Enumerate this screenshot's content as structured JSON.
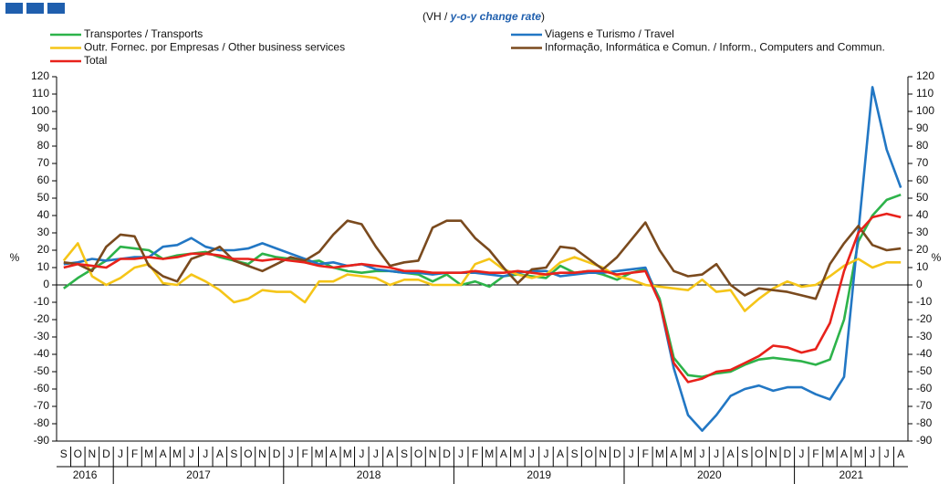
{
  "chart_data": {
    "type": "line",
    "subtitle": [
      "(VH / ",
      "y-o-y change rate",
      ")"
    ],
    "y_axis_label": "%",
    "y2_axis_label": "%",
    "categories": [
      "S",
      "O",
      "N",
      "D",
      "J",
      "F",
      "M",
      "A",
      "M",
      "J",
      "J",
      "A",
      "S",
      "O",
      "N",
      "D",
      "J",
      "F",
      "M",
      "A",
      "M",
      "J",
      "J",
      "A",
      "S",
      "O",
      "N",
      "D",
      "J",
      "F",
      "M",
      "A",
      "M",
      "J",
      "J",
      "A",
      "S",
      "O",
      "N",
      "D",
      "J",
      "F",
      "M",
      "A",
      "M",
      "J",
      "J",
      "A",
      "S",
      "O",
      "N",
      "D",
      "J",
      "F",
      "M",
      "A",
      "M",
      "J",
      "J",
      "A"
    ],
    "year_labels": [
      "2016",
      "2017",
      "2018",
      "2019",
      "2020",
      "2021"
    ],
    "ylim": [
      -90,
      120
    ],
    "yticks": [
      120,
      110,
      100,
      90,
      80,
      70,
      60,
      50,
      40,
      30,
      20,
      10,
      0,
      -10,
      -20,
      -30,
      -40,
      -50,
      -60,
      -70,
      -80,
      -90
    ],
    "grid": false,
    "series": [
      {
        "name": "Transportes / Transports",
        "color": "#2db34a",
        "values": [
          -2,
          4,
          9,
          14,
          22,
          21,
          20,
          15,
          17,
          18,
          19,
          16,
          14,
          12,
          18,
          16,
          15,
          13,
          14,
          10,
          8,
          7,
          8,
          8,
          7,
          6,
          2,
          6,
          0,
          2,
          -1,
          5,
          6,
          5,
          4,
          11,
          7,
          8,
          6,
          3,
          7,
          9,
          -8,
          -42,
          -52,
          -53,
          -51,
          -50,
          -46,
          -43,
          -42,
          -43,
          -44,
          -46,
          -43,
          -20,
          25,
          40,
          49,
          52
        ]
      },
      {
        "name": "Viagens e Turismo / Travel",
        "color": "#2277c4",
        "values": [
          12,
          13,
          15,
          14,
          15,
          16,
          16,
          22,
          23,
          27,
          22,
          20,
          20,
          21,
          24,
          21,
          18,
          15,
          12,
          13,
          11,
          12,
          9,
          8,
          7,
          7,
          6,
          7,
          7,
          7,
          6,
          5,
          7,
          8,
          8,
          5,
          6,
          7,
          7,
          8,
          9,
          10,
          -10,
          -48,
          -75,
          -84,
          -75,
          -64,
          -60,
          -58,
          -61,
          -59,
          -59,
          -63,
          -66,
          -53,
          30,
          114,
          78,
          56
        ]
      },
      {
        "name": "Outr. Fornec. por Empresas / Other business services",
        "color": "#f5c518",
        "values": [
          14,
          24,
          5,
          0,
          4,
          10,
          12,
          1,
          0,
          6,
          2,
          -3,
          -10,
          -8,
          -3,
          -4,
          -4,
          -10,
          2,
          2,
          6,
          5,
          4,
          0,
          3,
          3,
          0,
          0,
          0,
          12,
          15,
          9,
          6,
          4,
          6,
          13,
          16,
          13,
          10,
          5,
          3,
          0,
          -1,
          -2,
          -3,
          3,
          -4,
          -3,
          -15,
          -8,
          -2,
          2,
          -1,
          0,
          5,
          11,
          15,
          10,
          13,
          13
        ]
      },
      {
        "name": "Informação, Informática e Comun. / Inform., Computers and Commun.",
        "color": "#7a4a1e",
        "values": [
          13,
          12,
          8,
          22,
          29,
          28,
          11,
          5,
          2,
          15,
          18,
          22,
          14,
          11,
          8,
          12,
          16,
          14,
          19,
          29,
          37,
          35,
          22,
          11,
          13,
          14,
          33,
          37,
          37,
          27,
          20,
          10,
          1,
          9,
          10,
          22,
          21,
          15,
          9,
          16,
          26,
          36,
          20,
          8,
          5,
          6,
          12,
          0,
          -6,
          -2,
          -3,
          -4,
          -6,
          -8,
          12,
          24,
          34,
          23,
          20,
          21
        ]
      },
      {
        "name": "Total",
        "color": "#e8221b",
        "values": [
          10,
          12,
          11,
          10,
          15,
          15,
          16,
          15,
          16,
          18,
          18,
          17,
          15,
          15,
          14,
          15,
          14,
          13,
          11,
          10,
          11,
          12,
          11,
          10,
          8,
          8,
          7,
          7,
          7,
          8,
          7,
          7,
          8,
          7,
          6,
          7,
          7,
          8,
          8,
          6,
          7,
          8,
          -10,
          -45,
          -56,
          -54,
          -50,
          -49,
          -45,
          -41,
          -35,
          -36,
          -39,
          -37,
          -22,
          8,
          30,
          39,
          41,
          39
        ]
      }
    ]
  }
}
